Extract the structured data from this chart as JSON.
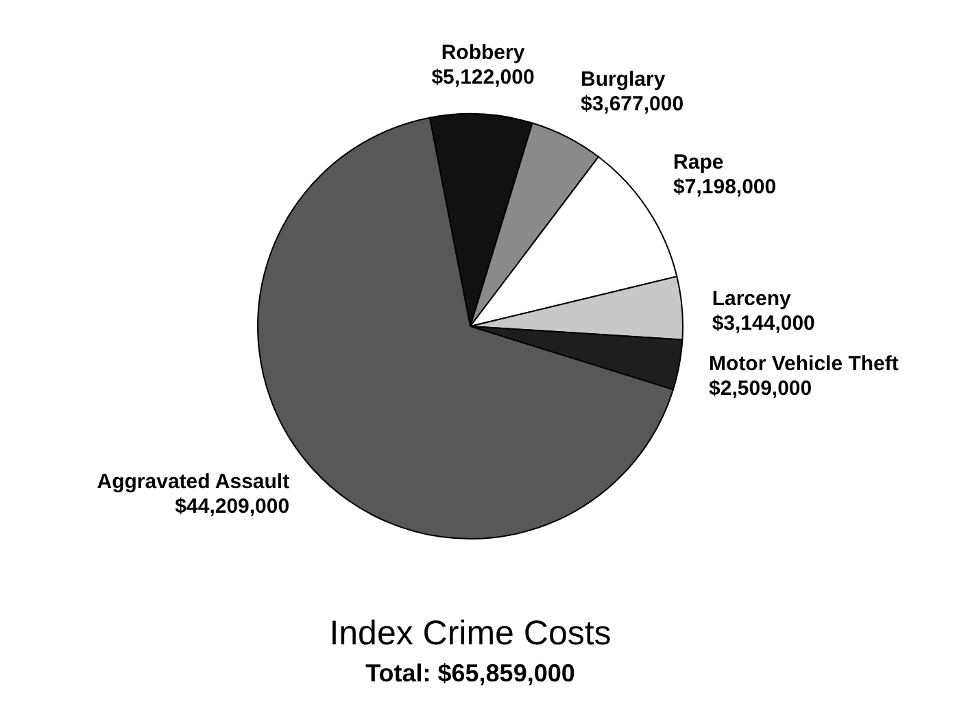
{
  "chart_data": {
    "type": "pie",
    "title": "Index Crime Costs",
    "subtitle": "Total: $65,859,000",
    "categories": [
      "Robbery",
      "Burglary",
      "Rape",
      "Larceny",
      "Motor Vehicle Theft",
      "Aggravated Assault"
    ],
    "values": [
      5122000,
      3677000,
      7198000,
      3144000,
      2509000,
      44209000
    ],
    "value_labels": [
      "$5,122,000",
      "$3,677,000",
      "$7,198,000",
      "$3,144,000",
      "$2,509,000",
      "$44,209,000"
    ],
    "colors": [
      "#111111",
      "#8a8a8a",
      "#ffffff",
      "#c8c8c8",
      "#1e1e1e",
      "#585858"
    ]
  }
}
